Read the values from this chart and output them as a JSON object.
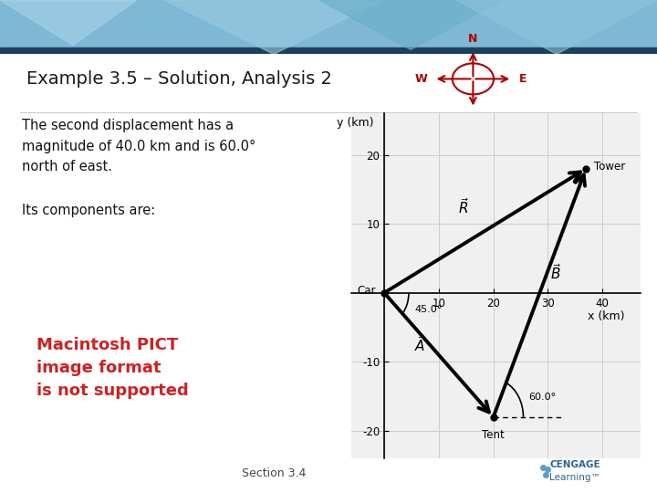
{
  "title": "Example 3.5 – Solution, Analysis 2",
  "body_text1": "The second displacement has a\nmagnitude of 40.0 km and is 60.0°\nnorth of east.",
  "body_text2": "Its components are:",
  "pict_text": "Macintosh PICT\nimage format\nis not supported",
  "section_text": "Section 3.4",
  "header_bg": "#7eb8d4",
  "header_dark_stripe": "#1e4060",
  "bg_color": "#ffffff",
  "title_color": "#1a1a1a",
  "body_color": "#111111",
  "pict_color": "#cc2222",
  "compass_color": "#aa0000",
  "arrow_color": "#000000",
  "grid_color": "#cccccc",
  "plot_bg": "#f0f0f0",
  "Car": [
    0,
    0
  ],
  "Tent": [
    20,
    -18
  ],
  "Tower": [
    37,
    18
  ],
  "xlim": [
    -6,
    47
  ],
  "ylim": [
    -24,
    26
  ],
  "xticks": [
    0,
    10,
    20,
    30,
    40
  ],
  "yticks": [
    -20,
    -10,
    0,
    10,
    20
  ],
  "xlabel": "x (km)",
  "ylabel": "y (km)"
}
